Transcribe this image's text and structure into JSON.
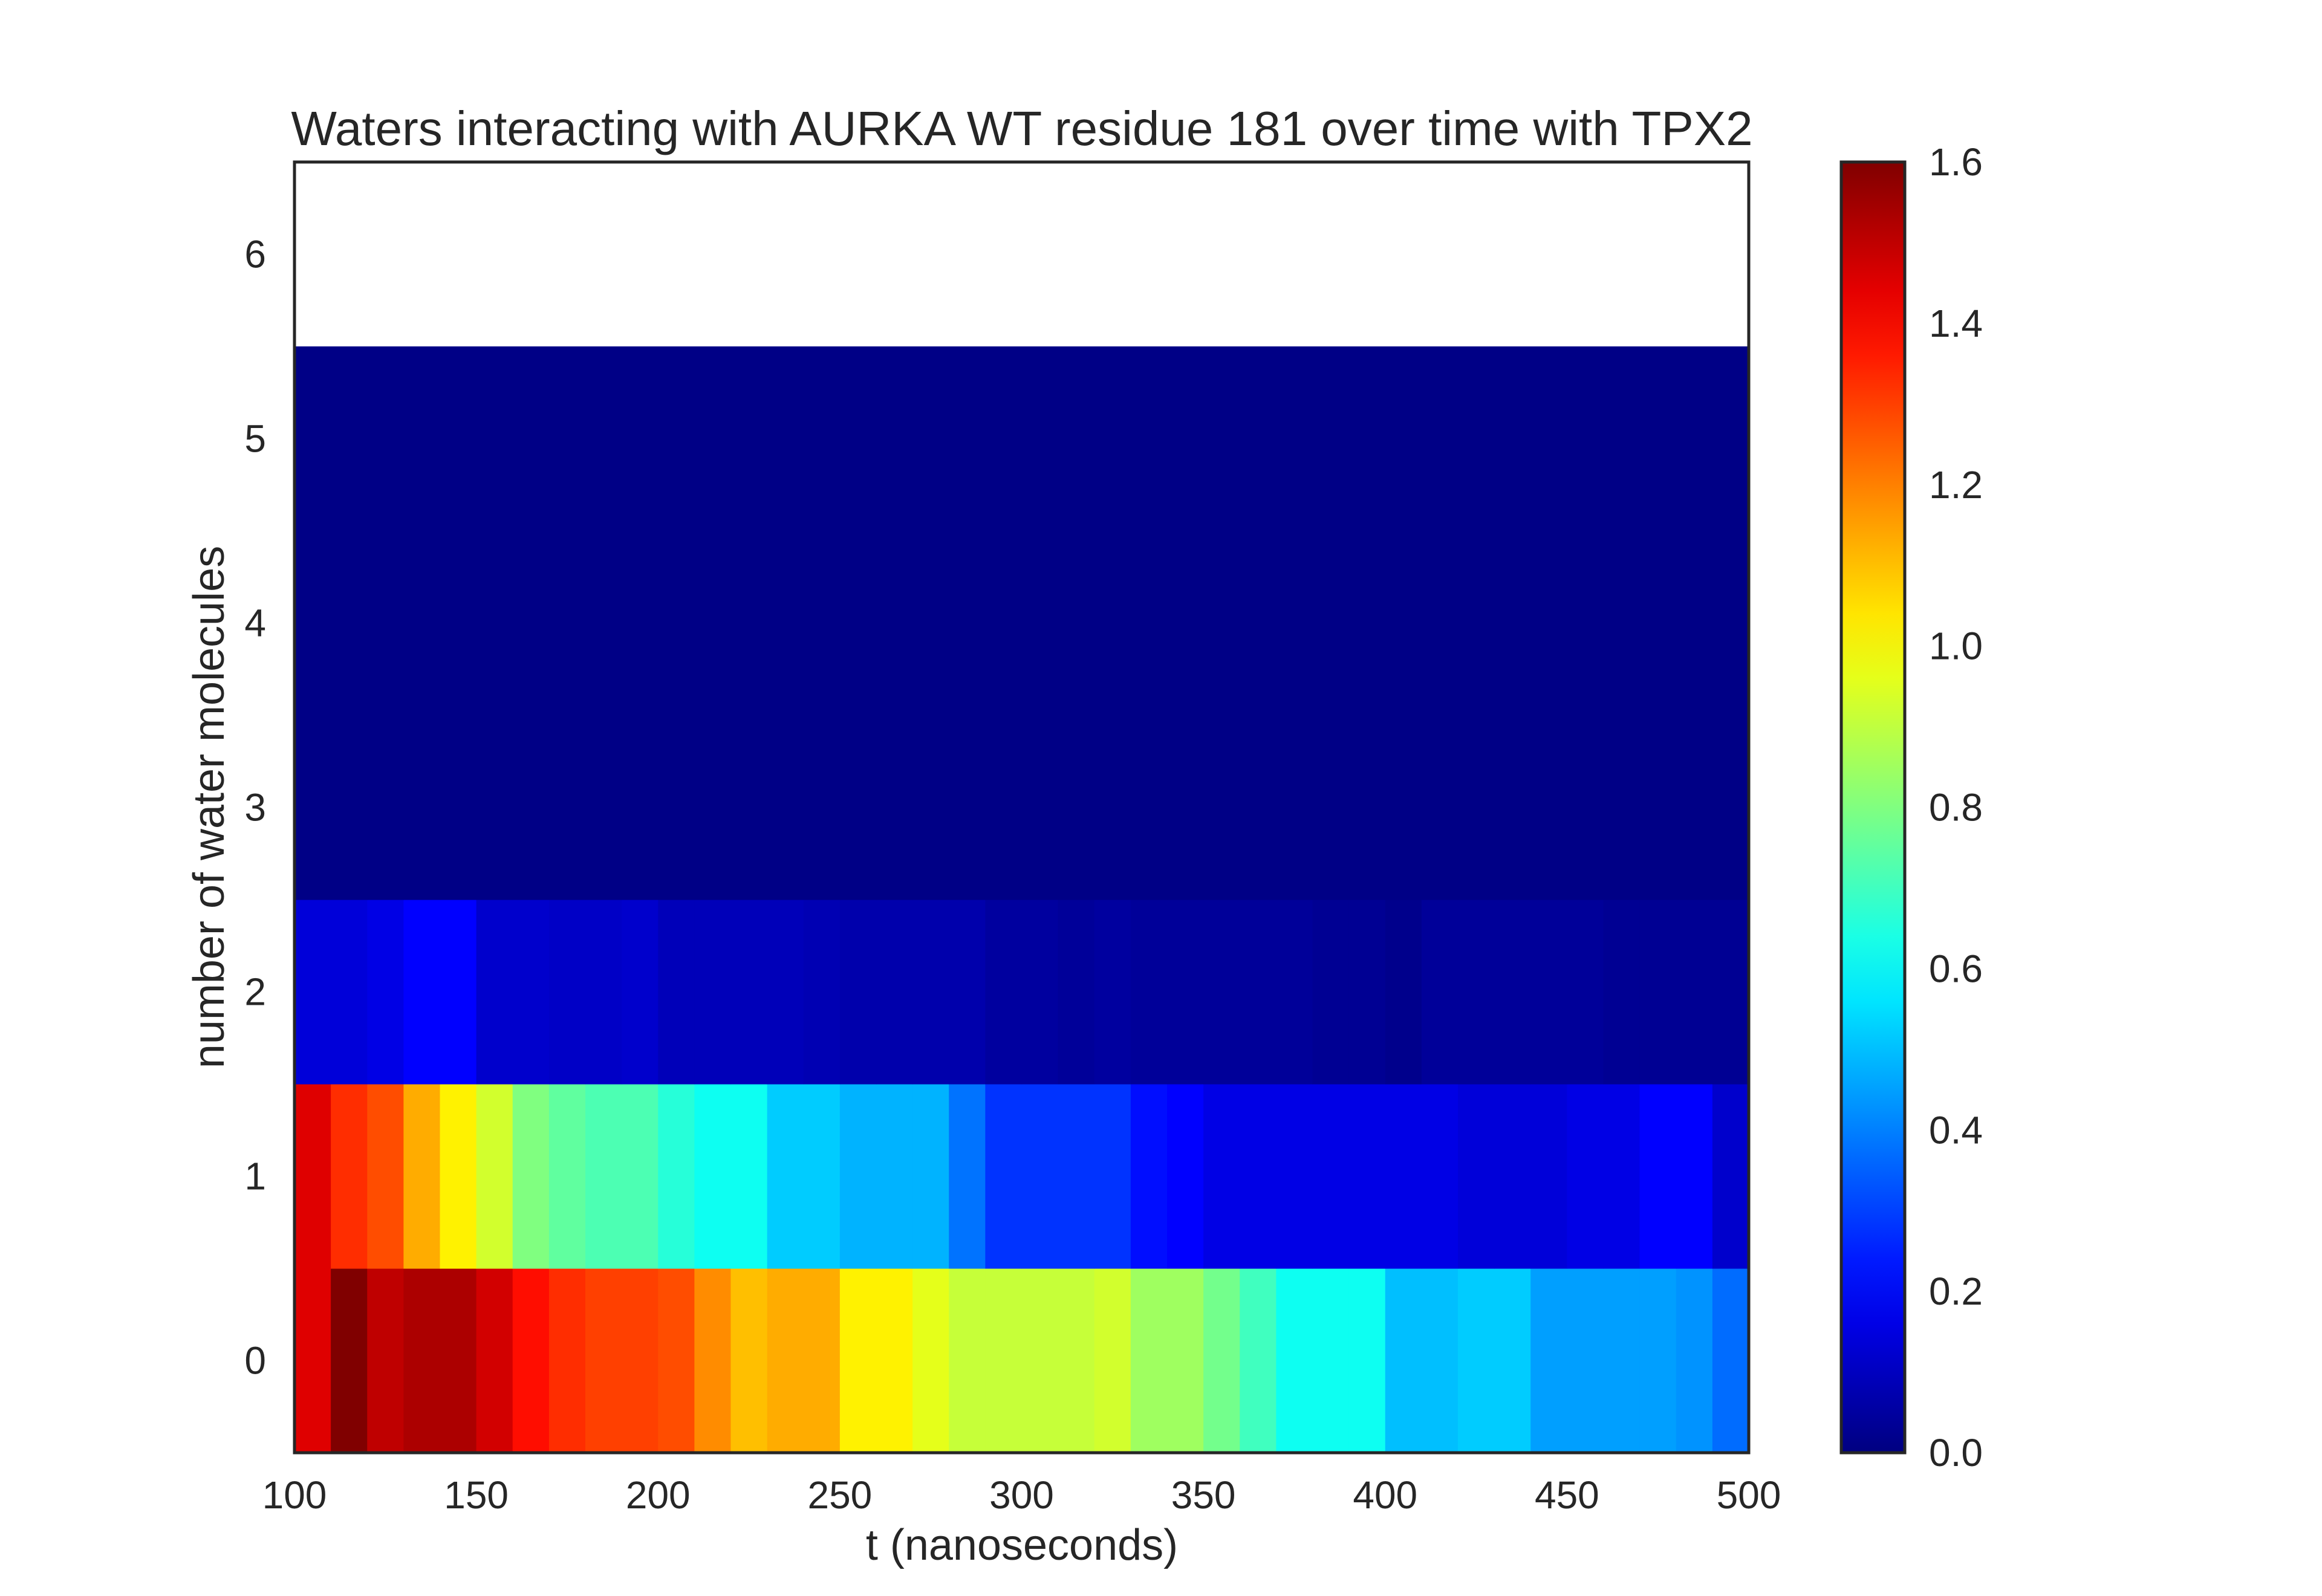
{
  "chart_data": {
    "type": "heatmap",
    "title": "Waters interacting with AURKA WT residue 181 over time with TPX2",
    "xlabel": "t (nanoseconds)",
    "ylabel": "number of water molecules",
    "xlim": [
      100,
      500
    ],
    "ylim": [
      -0.5,
      6.5
    ],
    "x_ticks": [
      "100",
      "150",
      "200",
      "250",
      "300",
      "350",
      "400",
      "450",
      "500"
    ],
    "y_ticks": [
      "0",
      "1",
      "2",
      "3",
      "4",
      "5",
      "6"
    ],
    "colorbar": {
      "colormap": "jet",
      "range": [
        0.0,
        1.6
      ],
      "ticks": [
        "0.0",
        "0.2",
        "0.4",
        "0.6",
        "0.8",
        "1.0",
        "1.2",
        "1.4",
        "1.6"
      ]
    },
    "x_bin_edges": [
      100,
      110,
      120,
      130,
      140,
      150,
      160,
      170,
      180,
      190,
      200,
      210,
      220,
      230,
      240,
      250,
      260,
      270,
      280,
      290,
      300,
      310,
      320,
      330,
      340,
      350,
      360,
      370,
      380,
      390,
      400,
      410,
      420,
      430,
      440,
      450,
      460,
      470,
      480,
      490
    ],
    "y_categories": [
      0,
      1,
      2,
      3,
      4,
      5
    ],
    "values": [
      [
        1.45,
        1.6,
        1.5,
        1.53,
        1.53,
        1.47,
        1.38,
        1.33,
        1.3,
        1.3,
        1.28,
        1.18,
        1.1,
        1.13,
        1.13,
        1.02,
        1.02,
        0.96,
        0.91,
        0.91,
        0.91,
        0.91,
        0.93,
        0.85,
        0.85,
        0.78,
        0.7,
        0.62,
        0.62,
        0.62,
        0.5,
        0.5,
        0.52,
        0.52,
        0.45,
        0.45,
        0.45,
        0.45,
        0.43,
        0.37
      ],
      [
        1.45,
        1.33,
        1.28,
        1.13,
        1.02,
        0.93,
        0.8,
        0.75,
        0.72,
        0.72,
        0.66,
        0.62,
        0.62,
        0.52,
        0.52,
        0.48,
        0.48,
        0.48,
        0.38,
        0.28,
        0.28,
        0.28,
        0.28,
        0.22,
        0.2,
        0.16,
        0.16,
        0.16,
        0.16,
        0.16,
        0.16,
        0.16,
        0.14,
        0.14,
        0.14,
        0.16,
        0.16,
        0.2,
        0.2,
        0.12
      ],
      [
        0.14,
        0.14,
        0.16,
        0.2,
        0.2,
        0.12,
        0.12,
        0.11,
        0.11,
        0.12,
        0.09,
        0.09,
        0.09,
        0.09,
        0.08,
        0.07,
        0.07,
        0.07,
        0.07,
        0.05,
        0.05,
        0.04,
        0.05,
        0.04,
        0.04,
        0.04,
        0.04,
        0.04,
        0.03,
        0.03,
        0.02,
        0.04,
        0.04,
        0.04,
        0.04,
        0.04,
        0.03,
        0.03,
        0.03,
        0.03
      ],
      [
        0.01,
        0.01,
        0.01,
        0.01,
        0.01,
        0.01,
        0.01,
        0.01,
        0.01,
        0.01,
        0.01,
        0.01,
        0.01,
        0.01,
        0.01,
        0.01,
        0.01,
        0.01,
        0.01,
        0.01,
        0.01,
        0.01,
        0.01,
        0.01,
        0.01,
        0.01,
        0.01,
        0.01,
        0.01,
        0.01,
        0.01,
        0.01,
        0.01,
        0.01,
        0.01,
        0.01,
        0.01,
        0.01,
        0.01,
        0.01
      ],
      [
        0.01,
        0.01,
        0.01,
        0.01,
        0.01,
        0.01,
        0.01,
        0.01,
        0.01,
        0.01,
        0.01,
        0.01,
        0.01,
        0.01,
        0.01,
        0.01,
        0.01,
        0.01,
        0.01,
        0.01,
        0.01,
        0.01,
        0.01,
        0.01,
        0.01,
        0.01,
        0.01,
        0.01,
        0.01,
        0.01,
        0.01,
        0.01,
        0.01,
        0.01,
        0.01,
        0.01,
        0.01,
        0.01,
        0.01,
        0.01
      ],
      [
        0.01,
        0.01,
        0.01,
        0.01,
        0.01,
        0.01,
        0.01,
        0.01,
        0.01,
        0.01,
        0.01,
        0.01,
        0.01,
        0.01,
        0.01,
        0.01,
        0.01,
        0.01,
        0.01,
        0.01,
        0.01,
        0.01,
        0.01,
        0.01,
        0.01,
        0.01,
        0.01,
        0.01,
        0.01,
        0.01,
        0.01,
        0.01,
        0.01,
        0.01,
        0.01,
        0.01,
        0.01,
        0.01,
        0.01,
        0.01
      ]
    ]
  }
}
